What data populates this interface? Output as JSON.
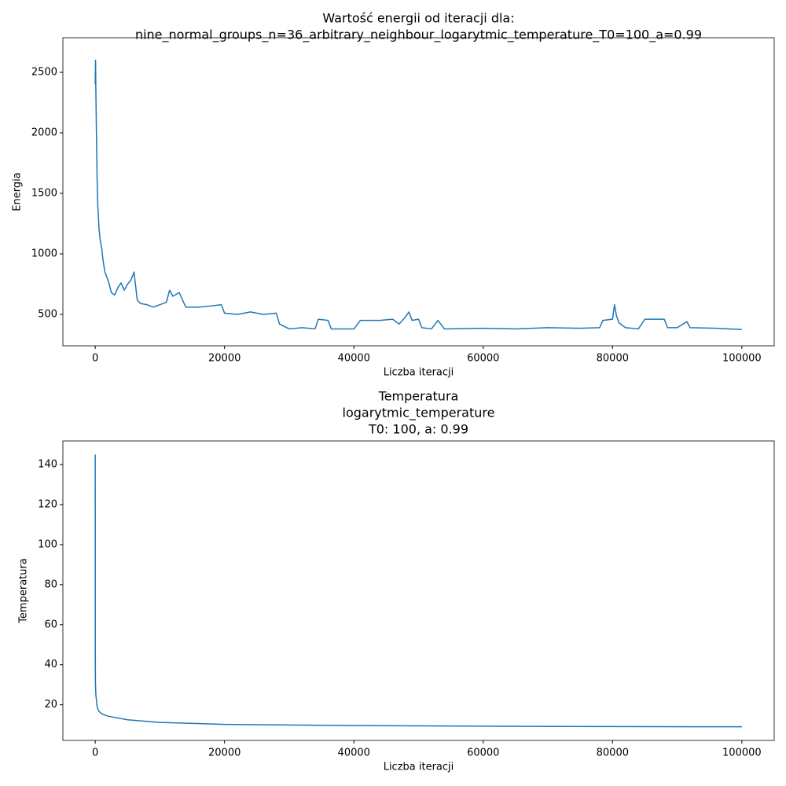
{
  "chart_data": [
    {
      "type": "line",
      "title": [
        "Wartość energii od iteracji dla:",
        "nine_normal_groups_n=36_arbitrary_neighbour_logarytmic_temperature_T0=100_a=0.99"
      ],
      "xlabel": "Liczba iteracji",
      "ylabel": "Energia",
      "x": [
        0,
        50,
        100,
        200,
        300,
        400,
        600,
        800,
        1000,
        1200,
        1500,
        2000,
        2500,
        3000,
        3500,
        4000,
        4500,
        5000,
        5500,
        6000,
        6500,
        7000,
        8000,
        9000,
        10000,
        11000,
        11500,
        12000,
        13000,
        14000,
        16000,
        18000,
        19500,
        20000,
        22000,
        24000,
        26000,
        28000,
        28500,
        30000,
        32000,
        34000,
        34500,
        36000,
        36500,
        40000,
        41000,
        44000,
        46000,
        47000,
        48000,
        48500,
        49000,
        50000,
        50500,
        52000,
        53000,
        54000,
        60000,
        65000,
        70000,
        75000,
        78000,
        78500,
        80000,
        80300,
        80600,
        81000,
        82000,
        84000,
        85000,
        88000,
        88500,
        90000,
        91500,
        92000,
        96000,
        100000
      ],
      "series": [
        {
          "name": "Energia",
          "color": "#1f77b4",
          "values": [
            2400,
            2600,
            2350,
            1950,
            1600,
            1400,
            1200,
            1100,
            1050,
            950,
            850,
            780,
            680,
            660,
            720,
            760,
            700,
            750,
            780,
            850,
            620,
            590,
            580,
            560,
            580,
            600,
            700,
            650,
            680,
            560,
            560,
            570,
            580,
            510,
            500,
            520,
            500,
            510,
            420,
            380,
            390,
            380,
            460,
            450,
            380,
            380,
            450,
            450,
            460,
            420,
            480,
            520,
            450,
            460,
            390,
            380,
            450,
            380,
            385,
            380,
            390,
            385,
            390,
            450,
            460,
            580,
            490,
            430,
            390,
            380,
            460,
            460,
            390,
            390,
            440,
            390,
            385,
            375
          ]
        }
      ],
      "xlim": [
        -5000,
        105000
      ],
      "ylim": [
        240,
        2786
      ],
      "xticks": [
        0,
        20000,
        40000,
        60000,
        80000,
        100000
      ],
      "yticks": [
        500,
        1000,
        1500,
        2000,
        2500
      ]
    },
    {
      "type": "line",
      "title": [
        "Temperatura",
        "logarytmic_temperature",
        "T0: 100, a: 0.99"
      ],
      "xlabel": "Liczba iteracji",
      "ylabel": "Temperatura",
      "x": [
        0,
        10,
        30,
        100,
        300,
        500,
        1000,
        2000,
        5000,
        10000,
        20000,
        40000,
        60000,
        80000,
        100000
      ],
      "series": [
        {
          "name": "Temperatura",
          "color": "#1f77b4",
          "values": [
            145,
            50,
            32,
            25,
            19,
            17,
            15.5,
            14.3,
            12.5,
            11.2,
            10.2,
            9.6,
            9.3,
            9.1,
            9.0
          ]
        }
      ],
      "xlim": [
        -5000,
        105000
      ],
      "ylim": [
        2.2,
        151.8
      ],
      "xticks": [
        0,
        20000,
        40000,
        60000,
        80000,
        100000
      ],
      "yticks": [
        20,
        40,
        60,
        80,
        100,
        120,
        140
      ]
    }
  ]
}
